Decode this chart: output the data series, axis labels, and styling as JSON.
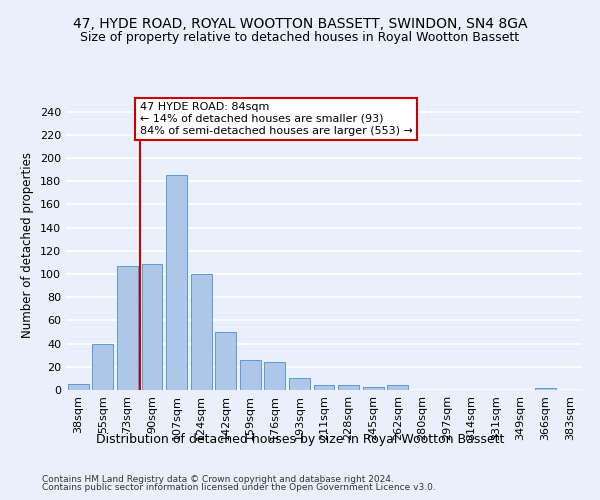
{
  "title": "47, HYDE ROAD, ROYAL WOOTTON BASSETT, SWINDON, SN4 8GA",
  "subtitle": "Size of property relative to detached houses in Royal Wootton Bassett",
  "xlabel": "Distribution of detached houses by size in Royal Wootton Bassett",
  "ylabel": "Number of detached properties",
  "footer1": "Contains HM Land Registry data © Crown copyright and database right 2024.",
  "footer2": "Contains public sector information licensed under the Open Government Licence v3.0.",
  "bar_labels": [
    "38sqm",
    "55sqm",
    "73sqm",
    "90sqm",
    "107sqm",
    "124sqm",
    "142sqm",
    "159sqm",
    "176sqm",
    "193sqm",
    "211sqm",
    "228sqm",
    "245sqm",
    "262sqm",
    "280sqm",
    "297sqm",
    "314sqm",
    "331sqm",
    "349sqm",
    "366sqm",
    "383sqm"
  ],
  "bar_values": [
    5,
    40,
    107,
    109,
    185,
    100,
    50,
    26,
    24,
    10,
    4,
    4,
    3,
    4,
    0,
    0,
    0,
    0,
    0,
    2,
    0
  ],
  "bar_color": "#aec6e8",
  "bar_edgecolor": "#5b9bd5",
  "background_color": "#eaf0fb",
  "grid_color": "#ffffff",
  "annotation_text": "47 HYDE ROAD: 84sqm\n← 14% of detached houses are smaller (93)\n84% of semi-detached houses are larger (553) →",
  "annotation_box_color": "#ffffff",
  "annotation_box_edgecolor": "#cc0000",
  "vline_color": "#cc0000",
  "ylim": [
    0,
    250
  ],
  "yticks": [
    0,
    20,
    40,
    60,
    80,
    100,
    120,
    140,
    160,
    180,
    200,
    220,
    240
  ],
  "title_fontsize": 10,
  "subtitle_fontsize": 9,
  "xlabel_fontsize": 9,
  "ylabel_fontsize": 8.5,
  "tick_fontsize": 8,
  "annotation_fontsize": 8,
  "footer_fontsize": 6.5
}
